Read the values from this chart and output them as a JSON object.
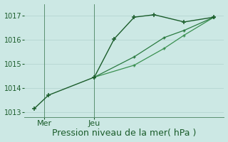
{
  "xlabel": "Pression niveau de la mer( hPa )",
  "ylim": [
    1012.8,
    1017.5
  ],
  "xlim": [
    0,
    10
  ],
  "yticks": [
    1013,
    1014,
    1015,
    1016,
    1017
  ],
  "xtick_positions": [
    1.0,
    3.5
  ],
  "xtick_labels": [
    "Mer",
    "Jeu"
  ],
  "grid_color": "#b8d8d4",
  "bg_color": "#cce8e4",
  "line_color_dark": "#1a5c2a",
  "line_color_mid": "#2a7a40",
  "line_color_light": "#3a9050",
  "vline_x": [
    1.0,
    3.5
  ],
  "line1_x": [
    0.5,
    1.2,
    3.5,
    4.5,
    5.5,
    6.5,
    8.0,
    9.5
  ],
  "line1_y": [
    1013.15,
    1013.7,
    1014.45,
    1016.05,
    1016.95,
    1017.05,
    1016.75,
    1016.95
  ],
  "line2_x": [
    3.5,
    5.5,
    7.0,
    8.0,
    9.5
  ],
  "line2_y": [
    1014.45,
    1015.3,
    1016.1,
    1016.4,
    1016.95
  ],
  "line3_x": [
    3.5,
    5.5,
    7.0,
    8.0,
    9.5
  ],
  "line3_y": [
    1014.45,
    1014.95,
    1015.65,
    1016.2,
    1016.95
  ],
  "xlabel_fontsize": 9,
  "ytick_fontsize": 7,
  "xtick_fontsize": 8
}
